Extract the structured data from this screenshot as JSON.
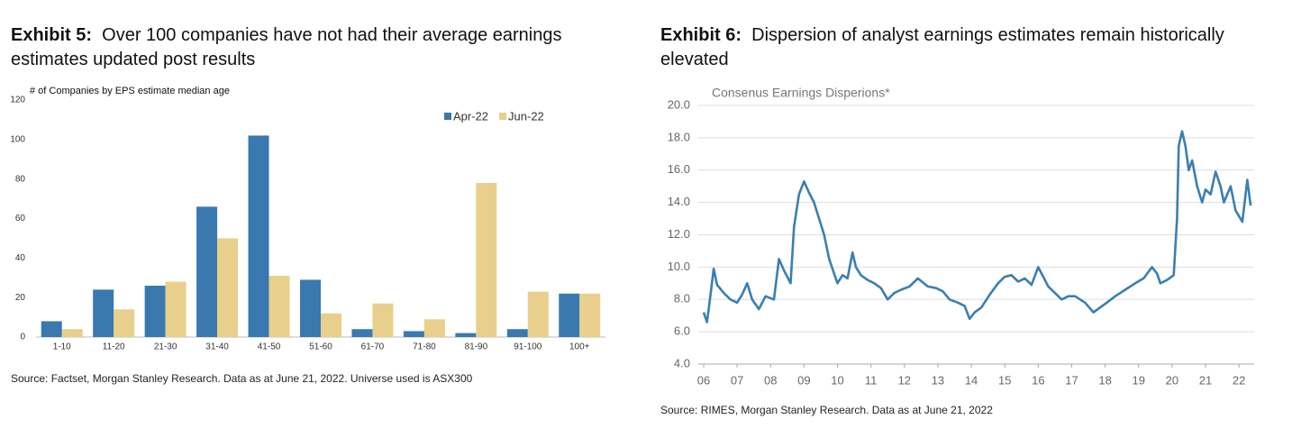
{
  "chart_data": [
    {
      "type": "bar",
      "label": "Exhibit 5:",
      "title": "Over 100 companies have not had their average earnings estimates updated post results",
      "subtitle": "# of Companies by EPS estimate median age",
      "categories": [
        "1-10",
        "11-20",
        "21-30",
        "31-40",
        "41-50",
        "51-60",
        "61-70",
        "71-80",
        "81-90",
        "91-100",
        "100+"
      ],
      "series": [
        {
          "name": "Apr-22",
          "color": "#3a78b0",
          "values": [
            8,
            24,
            26,
            66,
            102,
            29,
            4,
            3,
            2,
            4,
            22
          ]
        },
        {
          "name": "Jun-22",
          "color": "#e8cf8c",
          "values": [
            4,
            14,
            28,
            50,
            31,
            12,
            17,
            9,
            78,
            23,
            22
          ]
        }
      ],
      "ylim": [
        0,
        120
      ],
      "yticks": [
        0,
        20,
        40,
        60,
        80,
        100,
        120
      ],
      "legend": "top-right",
      "source": "Source: Factset, Morgan Stanley Research. Data as at June 21, 2022. Universe used is ASX300"
    },
    {
      "type": "line",
      "label": "Exhibit 6:",
      "title": "Dispersion of analyst earnings estimates remain historically elevated",
      "subtitle": "Consenus Earnings Disperions*",
      "color": "#3b7fb0",
      "grid": true,
      "x": [
        6.0,
        6.1,
        6.2,
        6.3,
        6.4,
        6.6,
        6.8,
        7.0,
        7.15,
        7.3,
        7.45,
        7.65,
        7.85,
        8.1,
        8.25,
        8.4,
        8.6,
        8.7,
        8.85,
        9.0,
        9.15,
        9.3,
        9.45,
        9.6,
        9.75,
        9.9,
        10.0,
        10.15,
        10.3,
        10.45,
        10.55,
        10.7,
        10.9,
        11.1,
        11.3,
        11.5,
        11.7,
        11.9,
        12.15,
        12.4,
        12.7,
        12.95,
        13.15,
        13.35,
        13.6,
        13.8,
        13.95,
        14.1,
        14.3,
        14.55,
        14.8,
        15.0,
        15.2,
        15.4,
        15.6,
        15.8,
        16.0,
        16.15,
        16.3,
        16.5,
        16.7,
        16.9,
        17.1,
        17.4,
        17.65,
        17.85,
        18.05,
        18.3,
        18.6,
        18.9,
        19.15,
        19.4,
        19.55,
        19.65,
        19.85,
        20.05,
        20.15,
        20.2,
        20.3,
        20.4,
        20.5,
        20.6,
        20.75,
        20.9,
        21.0,
        21.15,
        21.3,
        21.45,
        21.55,
        21.75,
        21.9,
        22.1,
        22.25,
        22.35
      ],
      "values": [
        7.2,
        6.6,
        8.2,
        9.9,
        8.9,
        8.4,
        8.0,
        7.8,
        8.3,
        9.0,
        8.0,
        7.4,
        8.2,
        8.0,
        10.5,
        9.8,
        9.0,
        12.5,
        14.5,
        15.3,
        14.6,
        14.0,
        13.0,
        12.0,
        10.5,
        9.6,
        9.0,
        9.5,
        9.3,
        10.9,
        10.0,
        9.5,
        9.2,
        9.0,
        8.7,
        8.0,
        8.4,
        8.6,
        8.8,
        9.3,
        8.8,
        8.7,
        8.5,
        8.0,
        7.8,
        7.6,
        6.8,
        7.2,
        7.5,
        8.3,
        9.0,
        9.4,
        9.5,
        9.1,
        9.3,
        8.9,
        10.0,
        9.4,
        8.8,
        8.4,
        8.0,
        8.2,
        8.2,
        7.8,
        7.2,
        7.5,
        7.8,
        8.2,
        8.6,
        9.0,
        9.3,
        10.0,
        9.6,
        9.0,
        9.2,
        9.5,
        13.0,
        17.5,
        18.4,
        17.5,
        16.0,
        16.6,
        15.0,
        14.0,
        14.8,
        14.5,
        15.9,
        15.0,
        14.0,
        15.0,
        13.5,
        12.8,
        15.4,
        13.8
      ],
      "xlim": [
        6,
        22.4
      ],
      "xticks": [
        {
          "value": 6,
          "label": "06"
        },
        {
          "value": 7,
          "label": "07"
        },
        {
          "value": 8,
          "label": "08"
        },
        {
          "value": 9,
          "label": "09"
        },
        10,
        11,
        12,
        13,
        14,
        15,
        16,
        17,
        18,
        19,
        20,
        21,
        22
      ],
      "ylim": [
        4,
        20
      ],
      "yticks": [
        {
          "value": 4,
          "label": "4.0"
        },
        {
          "value": 6,
          "label": "6.0"
        },
        {
          "value": 8,
          "label": "8.0"
        },
        {
          "value": 10,
          "label": "10.0"
        },
        {
          "value": 12,
          "label": "12.0"
        },
        {
          "value": 14,
          "label": "14.0"
        },
        {
          "value": 16,
          "label": "16.0"
        },
        {
          "value": 18,
          "label": "18.0"
        },
        {
          "value": 20,
          "label": "20.0"
        }
      ],
      "source": "Source: RIMES, Morgan Stanley Research. Data as at June 21, 2022"
    }
  ]
}
